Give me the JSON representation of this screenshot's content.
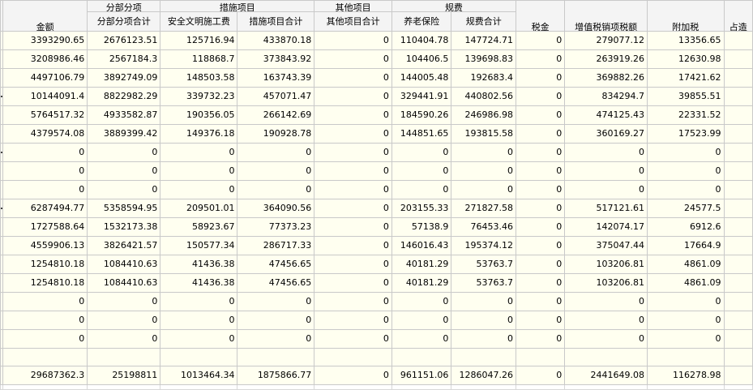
{
  "header": {
    "amount": "金额",
    "part_group": "分部分项",
    "part_total": "分部分项合计",
    "measure_group": "措施项目",
    "safety": "安全文明施工费",
    "measure_total": "措施项目合计",
    "other_group": "其他项目",
    "other_total": "其他项目合计",
    "fee_group": "规费",
    "pension": "养老保险",
    "fee_total": "规费合计",
    "tax": "税金",
    "vat": "增值税销项税额",
    "surcharge": "附加税",
    "share": "占造"
  },
  "rows": [
    {
      "dot": false,
      "amount": "3393290.65",
      "part": "2676123.51",
      "safety": "125716.94",
      "measure": "433870.18",
      "other": "0",
      "pension": "110404.78",
      "fee": "147724.71",
      "tax": "0",
      "vat": "279077.12",
      "surcharge": "13356.65"
    },
    {
      "dot": false,
      "amount": "3208986.46",
      "part": "2567184.3",
      "safety": "118868.7",
      "measure": "373843.92",
      "other": "0",
      "pension": "104406.5",
      "fee": "139698.83",
      "tax": "0",
      "vat": "263919.26",
      "surcharge": "12630.98"
    },
    {
      "dot": false,
      "amount": "4497106.79",
      "part": "3892749.09",
      "safety": "148503.58",
      "measure": "163743.39",
      "other": "0",
      "pension": "144005.48",
      "fee": "192683.4",
      "tax": "0",
      "vat": "369882.26",
      "surcharge": "17421.62"
    },
    {
      "dot": true,
      "amount": "10144091.4",
      "part": "8822982.29",
      "safety": "339732.23",
      "measure": "457071.47",
      "other": "0",
      "pension": "329441.91",
      "fee": "440802.56",
      "tax": "0",
      "vat": "834294.7",
      "surcharge": "39855.51"
    },
    {
      "dot": false,
      "amount": "5764517.32",
      "part": "4933582.87",
      "safety": "190356.05",
      "measure": "266142.69",
      "other": "0",
      "pension": "184590.26",
      "fee": "246986.98",
      "tax": "0",
      "vat": "474125.43",
      "surcharge": "22331.52"
    },
    {
      "dot": false,
      "amount": "4379574.08",
      "part": "3889399.42",
      "safety": "149376.18",
      "measure": "190928.78",
      "other": "0",
      "pension": "144851.65",
      "fee": "193815.58",
      "tax": "0",
      "vat": "360169.27",
      "surcharge": "17523.99"
    },
    {
      "dot": true,
      "amount": "0",
      "part": "0",
      "safety": "0",
      "measure": "0",
      "other": "0",
      "pension": "0",
      "fee": "0",
      "tax": "0",
      "vat": "0",
      "surcharge": "0"
    },
    {
      "dot": false,
      "amount": "0",
      "part": "0",
      "safety": "0",
      "measure": "0",
      "other": "0",
      "pension": "0",
      "fee": "0",
      "tax": "0",
      "vat": "0",
      "surcharge": "0"
    },
    {
      "dot": false,
      "amount": "0",
      "part": "0",
      "safety": "0",
      "measure": "0",
      "other": "0",
      "pension": "0",
      "fee": "0",
      "tax": "0",
      "vat": "0",
      "surcharge": "0"
    },
    {
      "dot": true,
      "amount": "6287494.77",
      "part": "5358594.95",
      "safety": "209501.01",
      "measure": "364090.56",
      "other": "0",
      "pension": "203155.33",
      "fee": "271827.58",
      "tax": "0",
      "vat": "517121.61",
      "surcharge": "24577.5"
    },
    {
      "dot": false,
      "amount": "1727588.64",
      "part": "1532173.38",
      "safety": "58923.67",
      "measure": "77373.23",
      "other": "0",
      "pension": "57138.9",
      "fee": "76453.46",
      "tax": "0",
      "vat": "142074.17",
      "surcharge": "6912.6"
    },
    {
      "dot": false,
      "amount": "4559906.13",
      "part": "3826421.57",
      "safety": "150577.34",
      "measure": "286717.33",
      "other": "0",
      "pension": "146016.43",
      "fee": "195374.12",
      "tax": "0",
      "vat": "375047.44",
      "surcharge": "17664.9"
    },
    {
      "dot": false,
      "amount": "1254810.18",
      "part": "1084410.63",
      "safety": "41436.38",
      "measure": "47456.65",
      "other": "0",
      "pension": "40181.29",
      "fee": "53763.7",
      "tax": "0",
      "vat": "103206.81",
      "surcharge": "4861.09"
    },
    {
      "dot": false,
      "amount": "1254810.18",
      "part": "1084410.63",
      "safety": "41436.38",
      "measure": "47456.65",
      "other": "0",
      "pension": "40181.29",
      "fee": "53763.7",
      "tax": "0",
      "vat": "103206.81",
      "surcharge": "4861.09"
    },
    {
      "dot": false,
      "amount": "0",
      "part": "0",
      "safety": "0",
      "measure": "0",
      "other": "0",
      "pension": "0",
      "fee": "0",
      "tax": "0",
      "vat": "0",
      "surcharge": "0"
    },
    {
      "dot": false,
      "amount": "0",
      "part": "0",
      "safety": "0",
      "measure": "0",
      "other": "0",
      "pension": "0",
      "fee": "0",
      "tax": "0",
      "vat": "0",
      "surcharge": "0"
    },
    {
      "dot": false,
      "amount": "0",
      "part": "0",
      "safety": "0",
      "measure": "0",
      "other": "0",
      "pension": "0",
      "fee": "0",
      "tax": "0",
      "vat": "0",
      "surcharge": "0"
    }
  ],
  "totals": {
    "amount": "29687362.3",
    "part": "25198811",
    "safety": "1013464.34",
    "measure": "1875866.77",
    "other": "0",
    "pension": "961151.06",
    "fee": "1286047.26",
    "tax": "0",
    "vat": "2441649.08",
    "surcharge": "116278.98"
  }
}
